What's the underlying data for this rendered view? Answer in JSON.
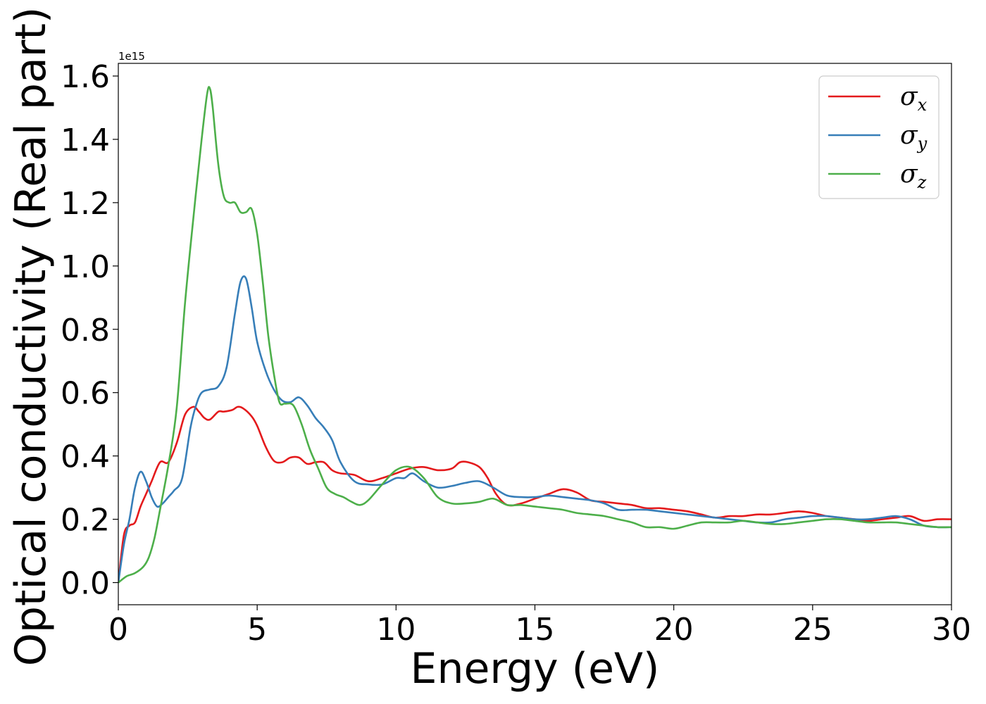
{
  "chart_data": {
    "type": "line",
    "xlabel": "Energy (eV)",
    "ylabel": "Optical conductivity (Real part)",
    "y_offset_text": "1e15",
    "xlim": [
      0,
      30
    ],
    "ylim": [
      -0.07,
      1.64
    ],
    "x_ticks": [
      0,
      5,
      10,
      15,
      20,
      25,
      30
    ],
    "x_tick_labels": [
      "0",
      "5",
      "10",
      "15",
      "20",
      "25",
      "30"
    ],
    "y_ticks": [
      0.0,
      0.2,
      0.4,
      0.6,
      0.8,
      1.0,
      1.2,
      1.4,
      1.6
    ],
    "y_tick_labels": [
      "0.0",
      "0.2",
      "0.4",
      "0.6",
      "0.8",
      "1.0",
      "1.2",
      "1.4",
      "1.6"
    ],
    "grid": false,
    "legend_position": "top-right",
    "series": [
      {
        "name": "σx",
        "symbol": "σ",
        "subscript": "x",
        "color": "#e41a1c",
        "x": [
          0,
          0.2,
          0.4,
          0.6,
          0.8,
          1.0,
          1.2,
          1.5,
          1.8,
          2.1,
          2.4,
          2.7,
          2.9,
          3.1,
          3.3,
          3.6,
          3.8,
          4.1,
          4.3,
          4.5,
          4.8,
          5.0,
          5.3,
          5.6,
          5.9,
          6.2,
          6.5,
          6.8,
          7.1,
          7.4,
          7.7,
          8.0,
          8.5,
          9.0,
          9.5,
          10.0,
          10.5,
          11.0,
          11.5,
          12.0,
          12.3,
          12.6,
          13.0,
          13.3,
          13.6,
          14.0,
          14.5,
          15.0,
          15.5,
          16.0,
          16.5,
          17.0,
          17.5,
          18.0,
          18.5,
          19.0,
          19.5,
          20.0,
          20.5,
          21.0,
          21.5,
          22.0,
          22.5,
          23.0,
          23.5,
          24.0,
          24.5,
          25.0,
          25.5,
          26.0,
          26.5,
          27.0,
          27.5,
          28.0,
          28.5,
          29.0,
          29.5,
          30.0
        ],
        "y": [
          0.0,
          0.15,
          0.18,
          0.19,
          0.24,
          0.28,
          0.32,
          0.38,
          0.38,
          0.44,
          0.53,
          0.555,
          0.54,
          0.52,
          0.515,
          0.54,
          0.54,
          0.545,
          0.555,
          0.55,
          0.525,
          0.495,
          0.43,
          0.385,
          0.38,
          0.395,
          0.395,
          0.375,
          0.38,
          0.38,
          0.355,
          0.345,
          0.34,
          0.32,
          0.33,
          0.345,
          0.36,
          0.365,
          0.355,
          0.36,
          0.38,
          0.38,
          0.365,
          0.33,
          0.28,
          0.245,
          0.25,
          0.265,
          0.28,
          0.295,
          0.285,
          0.26,
          0.255,
          0.25,
          0.245,
          0.235,
          0.235,
          0.23,
          0.225,
          0.215,
          0.205,
          0.21,
          0.21,
          0.215,
          0.215,
          0.22,
          0.225,
          0.22,
          0.21,
          0.205,
          0.2,
          0.195,
          0.2,
          0.205,
          0.21,
          0.195,
          0.2,
          0.2
        ]
      },
      {
        "name": "σy",
        "symbol": "σ",
        "subscript": "y",
        "color": "#377eb8",
        "x": [
          0,
          0.2,
          0.4,
          0.6,
          0.8,
          1.0,
          1.2,
          1.4,
          1.6,
          1.8,
          2.0,
          2.3,
          2.6,
          2.8,
          3.0,
          3.3,
          3.6,
          3.9,
          4.2,
          4.4,
          4.6,
          4.8,
          5.0,
          5.3,
          5.6,
          5.9,
          6.2,
          6.5,
          6.8,
          7.1,
          7.4,
          7.7,
          8.0,
          8.5,
          9.0,
          9.5,
          10.0,
          10.3,
          10.6,
          11.0,
          11.5,
          12.0,
          12.5,
          13.0,
          13.5,
          14.0,
          14.5,
          15.0,
          15.5,
          16.0,
          16.5,
          17.0,
          17.5,
          18.0,
          18.5,
          19.0,
          19.5,
          20.0,
          20.5,
          21.0,
          21.5,
          22.0,
          22.5,
          23.0,
          23.5,
          24.0,
          24.5,
          25.0,
          25.5,
          26.0,
          26.5,
          27.0,
          27.5,
          28.0,
          28.5,
          29.0,
          29.5,
          30.0
        ],
        "y": [
          0.0,
          0.12,
          0.2,
          0.3,
          0.35,
          0.32,
          0.27,
          0.24,
          0.25,
          0.27,
          0.29,
          0.33,
          0.49,
          0.56,
          0.6,
          0.61,
          0.62,
          0.68,
          0.85,
          0.95,
          0.96,
          0.87,
          0.76,
          0.67,
          0.61,
          0.575,
          0.57,
          0.585,
          0.56,
          0.52,
          0.49,
          0.45,
          0.38,
          0.32,
          0.31,
          0.31,
          0.33,
          0.33,
          0.345,
          0.32,
          0.3,
          0.305,
          0.315,
          0.32,
          0.3,
          0.275,
          0.27,
          0.27,
          0.275,
          0.27,
          0.265,
          0.26,
          0.25,
          0.23,
          0.23,
          0.23,
          0.225,
          0.22,
          0.215,
          0.21,
          0.205,
          0.2,
          0.195,
          0.19,
          0.19,
          0.2,
          0.205,
          0.21,
          0.21,
          0.205,
          0.2,
          0.2,
          0.205,
          0.21,
          0.2,
          0.18,
          0.175,
          0.175
        ]
      },
      {
        "name": "σz",
        "symbol": "σ",
        "subscript": "z",
        "color": "#4daf4a",
        "x": [
          0,
          0.3,
          0.6,
          0.9,
          1.1,
          1.3,
          1.5,
          1.8,
          2.1,
          2.4,
          2.7,
          3.0,
          3.2,
          3.3,
          3.4,
          3.6,
          3.8,
          4.0,
          4.2,
          4.4,
          4.6,
          4.8,
          5.0,
          5.2,
          5.4,
          5.6,
          5.8,
          6.0,
          6.3,
          6.6,
          6.9,
          7.2,
          7.5,
          7.8,
          8.1,
          8.4,
          8.7,
          9.0,
          9.5,
          10.0,
          10.5,
          11.0,
          11.5,
          12.0,
          12.5,
          13.0,
          13.5,
          14.0,
          14.5,
          15.0,
          15.5,
          16.0,
          16.5,
          17.0,
          17.5,
          18.0,
          18.5,
          19.0,
          19.5,
          20.0,
          20.5,
          21.0,
          21.5,
          22.0,
          22.5,
          23.0,
          23.5,
          24.0,
          24.5,
          25.0,
          25.5,
          26.0,
          26.5,
          27.0,
          27.5,
          28.0,
          28.5,
          29.0,
          29.5,
          30.0
        ],
        "y": [
          0.0,
          0.02,
          0.03,
          0.05,
          0.08,
          0.14,
          0.23,
          0.37,
          0.55,
          0.88,
          1.15,
          1.4,
          1.545,
          1.56,
          1.5,
          1.32,
          1.22,
          1.2,
          1.2,
          1.17,
          1.17,
          1.18,
          1.1,
          0.95,
          0.78,
          0.66,
          0.57,
          0.565,
          0.56,
          0.5,
          0.42,
          0.36,
          0.3,
          0.28,
          0.27,
          0.255,
          0.245,
          0.26,
          0.31,
          0.355,
          0.365,
          0.33,
          0.27,
          0.25,
          0.25,
          0.255,
          0.265,
          0.245,
          0.245,
          0.24,
          0.235,
          0.23,
          0.22,
          0.215,
          0.21,
          0.2,
          0.19,
          0.175,
          0.175,
          0.17,
          0.18,
          0.19,
          0.19,
          0.19,
          0.195,
          0.19,
          0.185,
          0.185,
          0.19,
          0.195,
          0.2,
          0.2,
          0.195,
          0.19,
          0.19,
          0.19,
          0.185,
          0.18,
          0.175,
          0.175
        ]
      }
    ]
  }
}
